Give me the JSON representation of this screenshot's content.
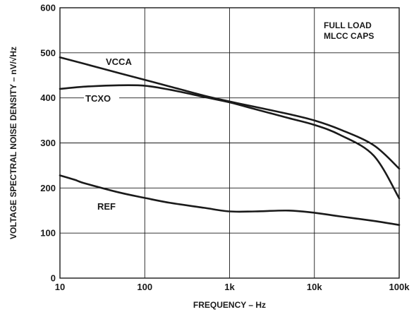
{
  "chart_data": {
    "type": "line",
    "xlabel": "FREQUENCY – Hz",
    "ylabel": "VOLTAGE SPECTRAL NOISE DENSITY – nV/√Hz",
    "x_scale": "log",
    "xlim": [
      10,
      100000
    ],
    "ylim": [
      0,
      600
    ],
    "x_ticks": [
      10,
      100,
      1000,
      10000,
      100000
    ],
    "x_tick_labels": [
      "10",
      "100",
      "1k",
      "10k",
      "100k"
    ],
    "y_ticks": [
      0,
      100,
      200,
      300,
      400,
      500,
      600
    ],
    "y_tick_labels": [
      "0",
      "100",
      "200",
      "300",
      "400",
      "500",
      "600"
    ],
    "grid": true,
    "annotations": [
      "FULL LOAD",
      "MLCC CAPS"
    ],
    "series": [
      {
        "name": "VCCA",
        "x": [
          10,
          20,
          50,
          100,
          200,
          500,
          1000,
          2000,
          5000,
          10000,
          20000,
          50000,
          100000
        ],
        "values": [
          490,
          475,
          455,
          440,
          425,
          405,
          392,
          380,
          364,
          350,
          330,
          295,
          243
        ]
      },
      {
        "name": "TCXO",
        "x": [
          10,
          20,
          50,
          100,
          200,
          500,
          1000,
          2000,
          5000,
          10000,
          20000,
          50000,
          100000
        ],
        "values": [
          420,
          425,
          428,
          427,
          418,
          402,
          390,
          375,
          355,
          340,
          318,
          272,
          177
        ]
      },
      {
        "name": "REF",
        "x": [
          10,
          15,
          20,
          50,
          100,
          200,
          500,
          1000,
          2000,
          5000,
          10000,
          20000,
          50000,
          100000
        ],
        "values": [
          228,
          218,
          210,
          190,
          178,
          167,
          156,
          148,
          148,
          150,
          145,
          137,
          127,
          118
        ]
      }
    ]
  }
}
